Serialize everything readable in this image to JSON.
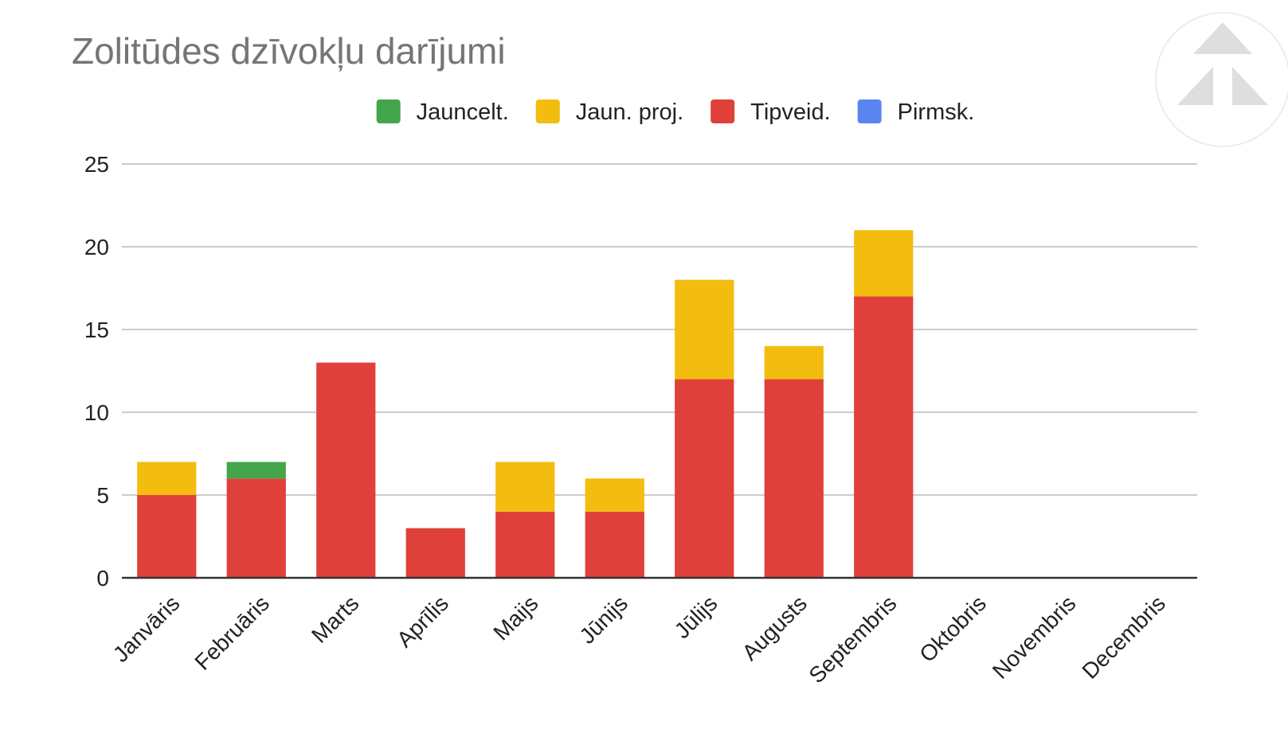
{
  "chart_data": {
    "type": "bar",
    "stacked": true,
    "title": "Zolitūdes dzīvokļu darījumi",
    "xlabel": "",
    "ylabel": "",
    "ylim": [
      0,
      25
    ],
    "yticks": [
      0,
      5,
      10,
      15,
      20,
      25
    ],
    "grid": true,
    "legend_position": "top",
    "categories": [
      "Janvāris",
      "Februāris",
      "Marts",
      "Aprīlis",
      "Maijs",
      "Jūnijs",
      "Jūlijs",
      "Augusts",
      "Septembris",
      "Oktobris",
      "Novembris",
      "Decembris"
    ],
    "series": [
      {
        "name": "Jauncelt.",
        "color": "#43a64a",
        "values": [
          0,
          1,
          0,
          0,
          0,
          0,
          0,
          0,
          0,
          0,
          0,
          0
        ]
      },
      {
        "name": "Jaun. proj.",
        "color": "#f2bd0f",
        "values": [
          2,
          0,
          0,
          0,
          3,
          2,
          6,
          2,
          4,
          0,
          0,
          0
        ]
      },
      {
        "name": "Tipveid.",
        "color": "#e0403a",
        "values": [
          5,
          6,
          13,
          3,
          4,
          4,
          12,
          12,
          17,
          0,
          0,
          0
        ]
      },
      {
        "name": "Pirmsk.",
        "color": "#5a84ef",
        "values": [
          0,
          0,
          0,
          0,
          0,
          0,
          0,
          0,
          0,
          0,
          0,
          0
        ]
      }
    ],
    "stack_order": [
      "Pirmsk.",
      "Tipveid.",
      "Jaun. proj.",
      "Jauncelt."
    ]
  },
  "watermark": {
    "icon": "triangle-logo-icon"
  }
}
